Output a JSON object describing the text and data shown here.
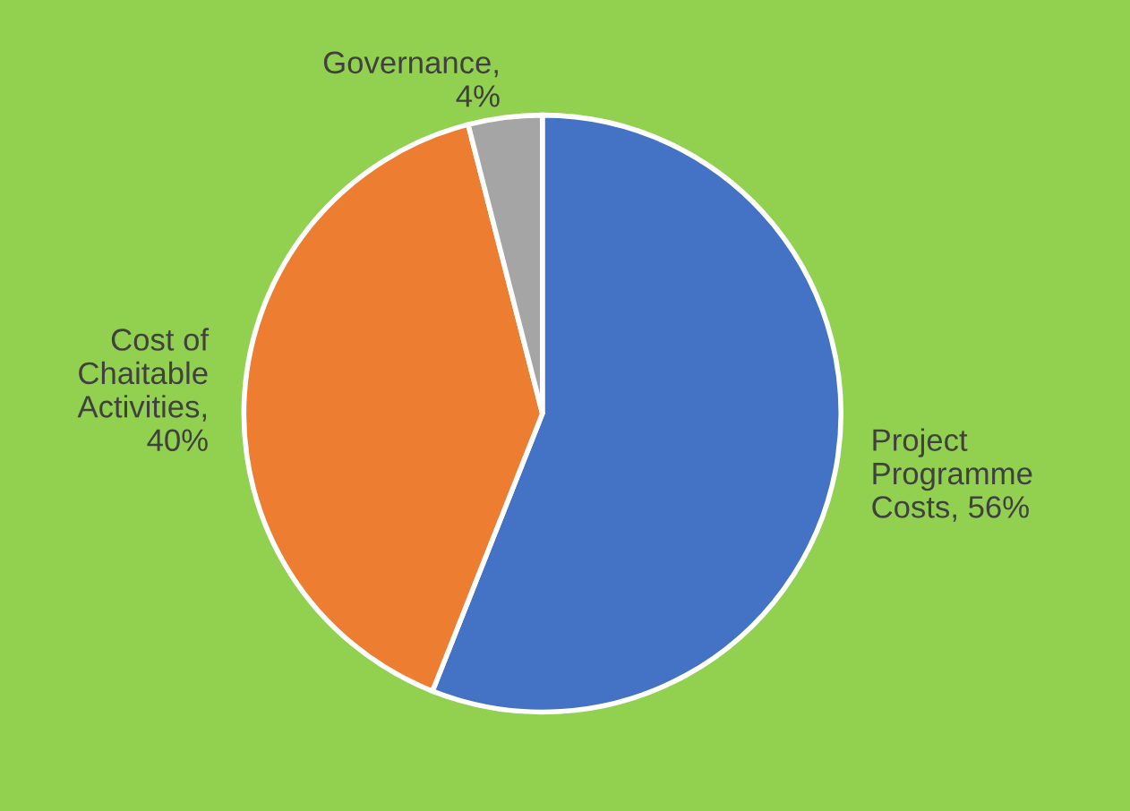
{
  "chart_data": {
    "type": "pie",
    "categories": [
      "Project\nProgramme\nCosts, 56%",
      "Cost of\nChaitable\nActivities,\n40%",
      "Governance,\n4%"
    ],
    "values": [
      56,
      40,
      4
    ],
    "colors": [
      "#4472c4",
      "#ed7d31",
      "#a5a5a5"
    ],
    "legend": false
  }
}
